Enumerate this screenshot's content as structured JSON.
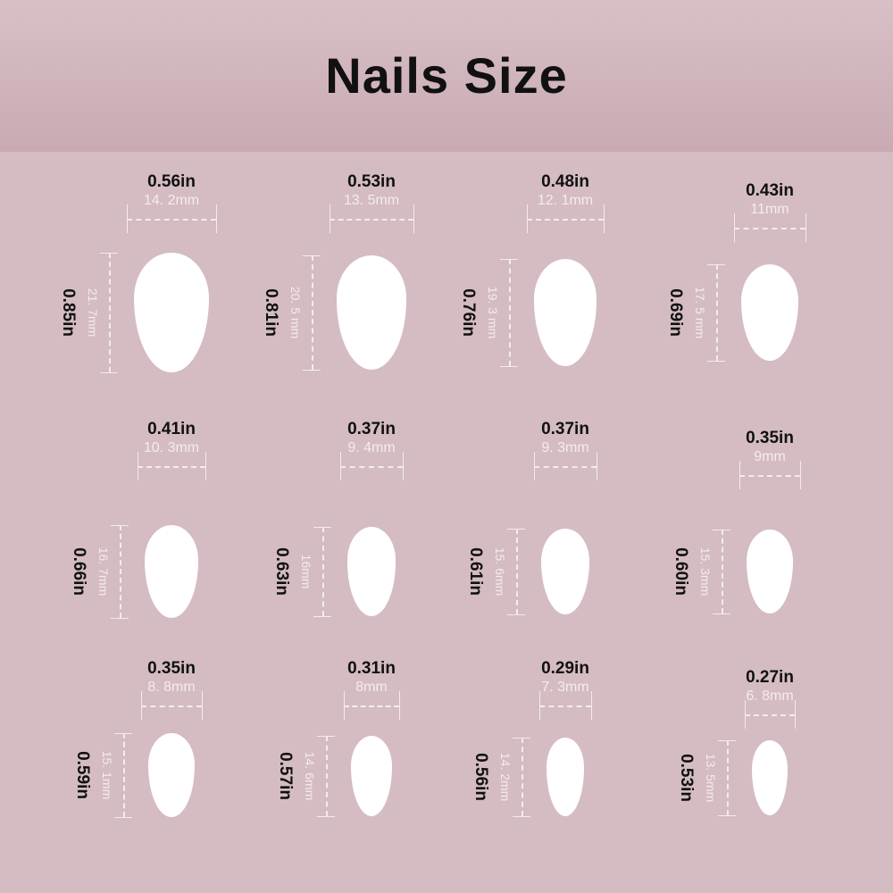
{
  "title": "Nails Size",
  "colors": {
    "background": "#d4bcc2",
    "nail": "#ffffff",
    "measure_lines": "#f4ecee",
    "text": "#111111"
  },
  "nails": [
    {
      "width_in": "0.56in",
      "width_mm": "14. 2mm",
      "length_in": "0.85in",
      "length_mm": "21. 7mm"
    },
    {
      "width_in": "0.53in",
      "width_mm": "13. 5mm",
      "length_in": "0.81in",
      "length_mm": "20. 5 mm"
    },
    {
      "width_in": "0.48in",
      "width_mm": "12. 1mm",
      "length_in": "0.76in",
      "length_mm": "19. 3 mm"
    },
    {
      "width_in": "0.43in",
      "width_mm": "11mm",
      "length_in": "0.69in",
      "length_mm": "17. 5 mm"
    },
    {
      "width_in": "0.41in",
      "width_mm": "10. 3mm",
      "length_in": "0.66in",
      "length_mm": "16. 7mm"
    },
    {
      "width_in": "0.37in",
      "width_mm": "9. 4mm",
      "length_in": "0.63in",
      "length_mm": "16mm"
    },
    {
      "width_in": "0.37in",
      "width_mm": "9. 3mm",
      "length_in": "0.61in",
      "length_mm": "15. 6mm"
    },
    {
      "width_in": "0.35in",
      "width_mm": "9mm",
      "length_in": "0.60in",
      "length_mm": "15. 3mm"
    },
    {
      "width_in": "0.35in",
      "width_mm": "8. 8mm",
      "length_in": "0.59in",
      "length_mm": "15. 1mm"
    },
    {
      "width_in": "0.31in",
      "width_mm": "8mm",
      "length_in": "0.57in",
      "length_mm": "14. 6mm"
    },
    {
      "width_in": "0.29in",
      "width_mm": "7. 3mm",
      "length_in": "0.56in",
      "length_mm": "14. 2mm"
    },
    {
      "width_in": "0.27in",
      "width_mm": "6. 8mm",
      "length_in": "0.53in",
      "length_mm": "13. 5mm"
    }
  ]
}
